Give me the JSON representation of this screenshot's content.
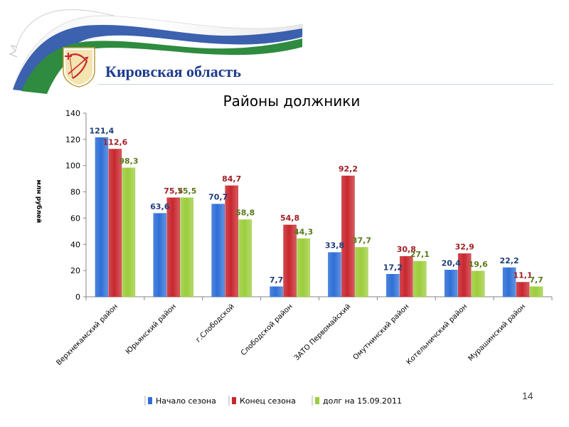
{
  "header": {
    "region_title": "Кировская область"
  },
  "slide": {
    "number": "14"
  },
  "colors": {
    "series": [
      "#2f6fd6",
      "#c8272e",
      "#9ccd3c"
    ],
    "label_colors": [
      "#1f3d7a",
      "#a11f26",
      "#5a7a1a"
    ],
    "ribbon_green": "#2e8b3f",
    "ribbon_blue": "#2a54a8",
    "title_blue": "#1f3c8f"
  },
  "chart_data": {
    "type": "bar",
    "title": "Районы должники",
    "ylabel": "млн рублей",
    "ylim": [
      0,
      140
    ],
    "yticks": [
      0,
      20,
      40,
      60,
      80,
      100,
      120,
      140
    ],
    "grid": false,
    "legend_position": "bottom",
    "categories": [
      "Верхнекамский район",
      "Юрьянский район",
      "г.Слободской",
      "Слободской район",
      "ЗАТО Первомайский",
      "Омутнинский район",
      "Котельничский район",
      "Мурашинский район"
    ],
    "series": [
      {
        "name": "Начало сезона",
        "values": [
          121.4,
          63.6,
          70.7,
          7.7,
          33.8,
          17.2,
          20.4,
          22.2
        ],
        "labels": [
          "121,4",
          "63,6",
          "70,7",
          "7,7",
          "33,8",
          "17,2",
          "20,4",
          "22,2"
        ]
      },
      {
        "name": "Конец сезона",
        "values": [
          112.6,
          75.5,
          84.7,
          54.8,
          92.2,
          30.8,
          32.9,
          11.1
        ],
        "labels": [
          "112,6",
          "75,5",
          "84,7",
          "54,8",
          "92,2",
          "30,8",
          "32,9",
          "11,1"
        ]
      },
      {
        "name": "долг на 15.09.2011",
        "values": [
          98.3,
          75.5,
          58.8,
          44.3,
          37.7,
          27.1,
          19.6,
          7.7
        ],
        "labels": [
          "98,3",
          "75,5",
          "58,8",
          "44,3",
          "37,7",
          "27,1",
          "19,6",
          "7,7"
        ]
      }
    ]
  }
}
